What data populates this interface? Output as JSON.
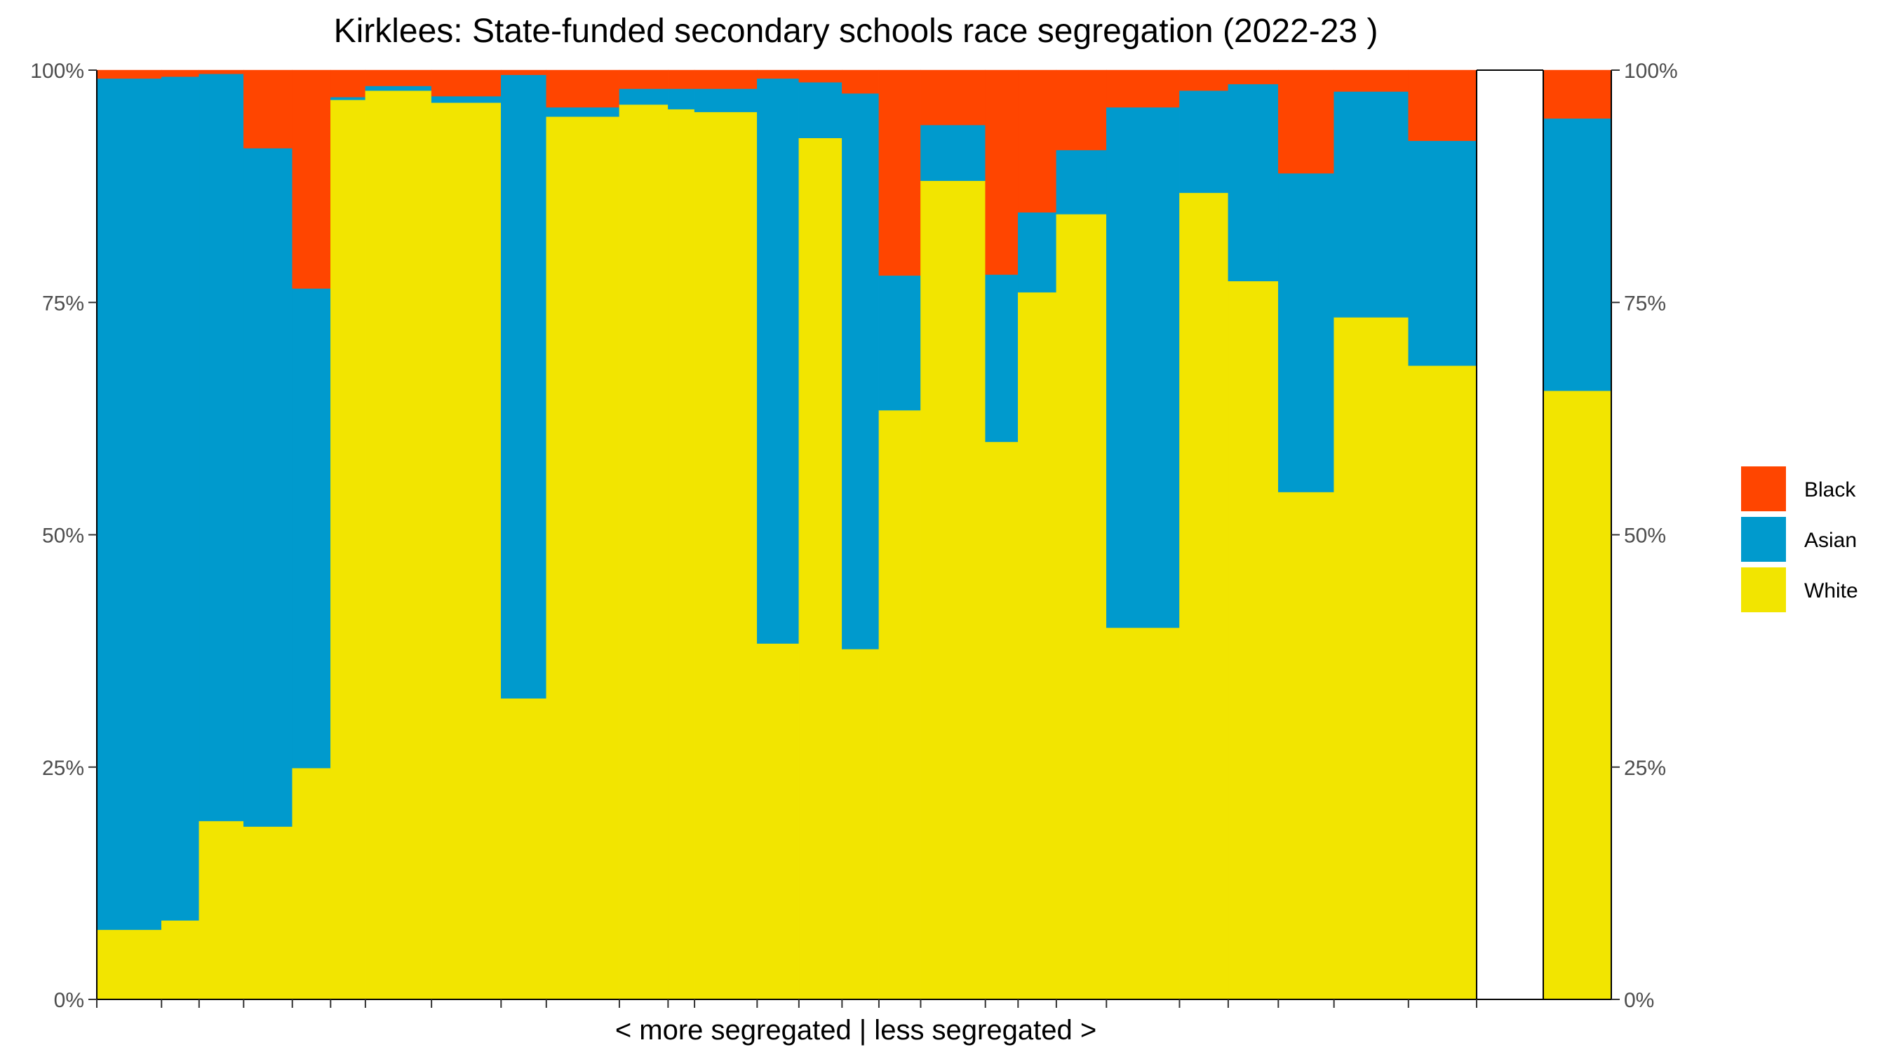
{
  "chart_data": {
    "type": "bar",
    "title": "Kirklees: State-funded secondary schools race segregation (2022-23 )",
    "xlabel": "< more segregated | less segregated >",
    "ylabel": "",
    "ylim": [
      0,
      100
    ],
    "y_ticks": [
      "0%",
      "25%",
      "50%",
      "75%",
      "100%"
    ],
    "y_axis_sides": [
      "left",
      "right"
    ],
    "grid": false,
    "legend_position": "right",
    "colors": {
      "Black": "#FF4500",
      "Asian": "#009ACD",
      "White": "#F2E500"
    },
    "variable_width": true,
    "schools": [
      {
        "width": 93,
        "White": 7.5,
        "Asian": 91.6,
        "Black": 0.9
      },
      {
        "width": 54,
        "White": 8.5,
        "Asian": 90.8,
        "Black": 0.7
      },
      {
        "width": 64,
        "White": 19.2,
        "Asian": 80.4,
        "Black": 0.4
      },
      {
        "width": 70,
        "White": 18.6,
        "Asian": 73.0,
        "Black": 8.4
      },
      {
        "width": 55,
        "White": 24.9,
        "Asian": 51.6,
        "Black": 23.5
      },
      {
        "width": 50,
        "White": 96.8,
        "Asian": 0.3,
        "Black": 2.9
      },
      {
        "width": 95,
        "White": 97.8,
        "Asian": 0.5,
        "Black": 1.7
      },
      {
        "width": 100,
        "White": 96.5,
        "Asian": 0.7,
        "Black": 2.8
      },
      {
        "width": 65,
        "White": 32.4,
        "Asian": 67.1,
        "Black": 0.5
      },
      {
        "width": 105,
        "White": 95.0,
        "Asian": 1.0,
        "Black": 4.0
      },
      {
        "width": 70,
        "White": 96.3,
        "Asian": 1.7,
        "Black": 2.0
      },
      {
        "width": 38,
        "White": 95.8,
        "Asian": 2.2,
        "Black": 2.0
      },
      {
        "width": 90,
        "White": 95.5,
        "Asian": 2.5,
        "Black": 2.0
      },
      {
        "width": 60,
        "White": 38.3,
        "Asian": 60.8,
        "Black": 0.9
      },
      {
        "width": 62,
        "White": 92.7,
        "Asian": 6.0,
        "Black": 1.3
      },
      {
        "width": 53,
        "White": 37.7,
        "Asian": 59.8,
        "Black": 2.5
      },
      {
        "width": 60,
        "White": 63.4,
        "Asian": 14.5,
        "Black": 22.1
      },
      {
        "width": 93,
        "White": 88.1,
        "Asian": 6.0,
        "Black": 5.9
      },
      {
        "width": 47,
        "White": 60.0,
        "Asian": 18.0,
        "Black": 22.0
      },
      {
        "width": 55,
        "White": 76.1,
        "Asian": 8.6,
        "Black": 15.3
      },
      {
        "width": 72,
        "White": 84.5,
        "Asian": 6.9,
        "Black": 8.6
      },
      {
        "width": 105,
        "White": 40.0,
        "Asian": 56.0,
        "Black": 4.0
      },
      {
        "width": 70,
        "White": 86.8,
        "Asian": 11.0,
        "Black": 2.2
      },
      {
        "width": 72,
        "White": 77.3,
        "Asian": 21.2,
        "Black": 1.5
      },
      {
        "width": 80,
        "White": 54.6,
        "Asian": 34.3,
        "Black": 11.1
      },
      {
        "width": 107,
        "White": 73.4,
        "Asian": 24.3,
        "Black": 2.3
      },
      {
        "width": 98,
        "White": 68.2,
        "Asian": 24.2,
        "Black": 7.6
      }
    ],
    "overall": {
      "White": 65.5,
      "Asian": 29.3,
      "Black": 5.2
    },
    "legend": [
      "Black",
      "Asian",
      "White"
    ]
  }
}
